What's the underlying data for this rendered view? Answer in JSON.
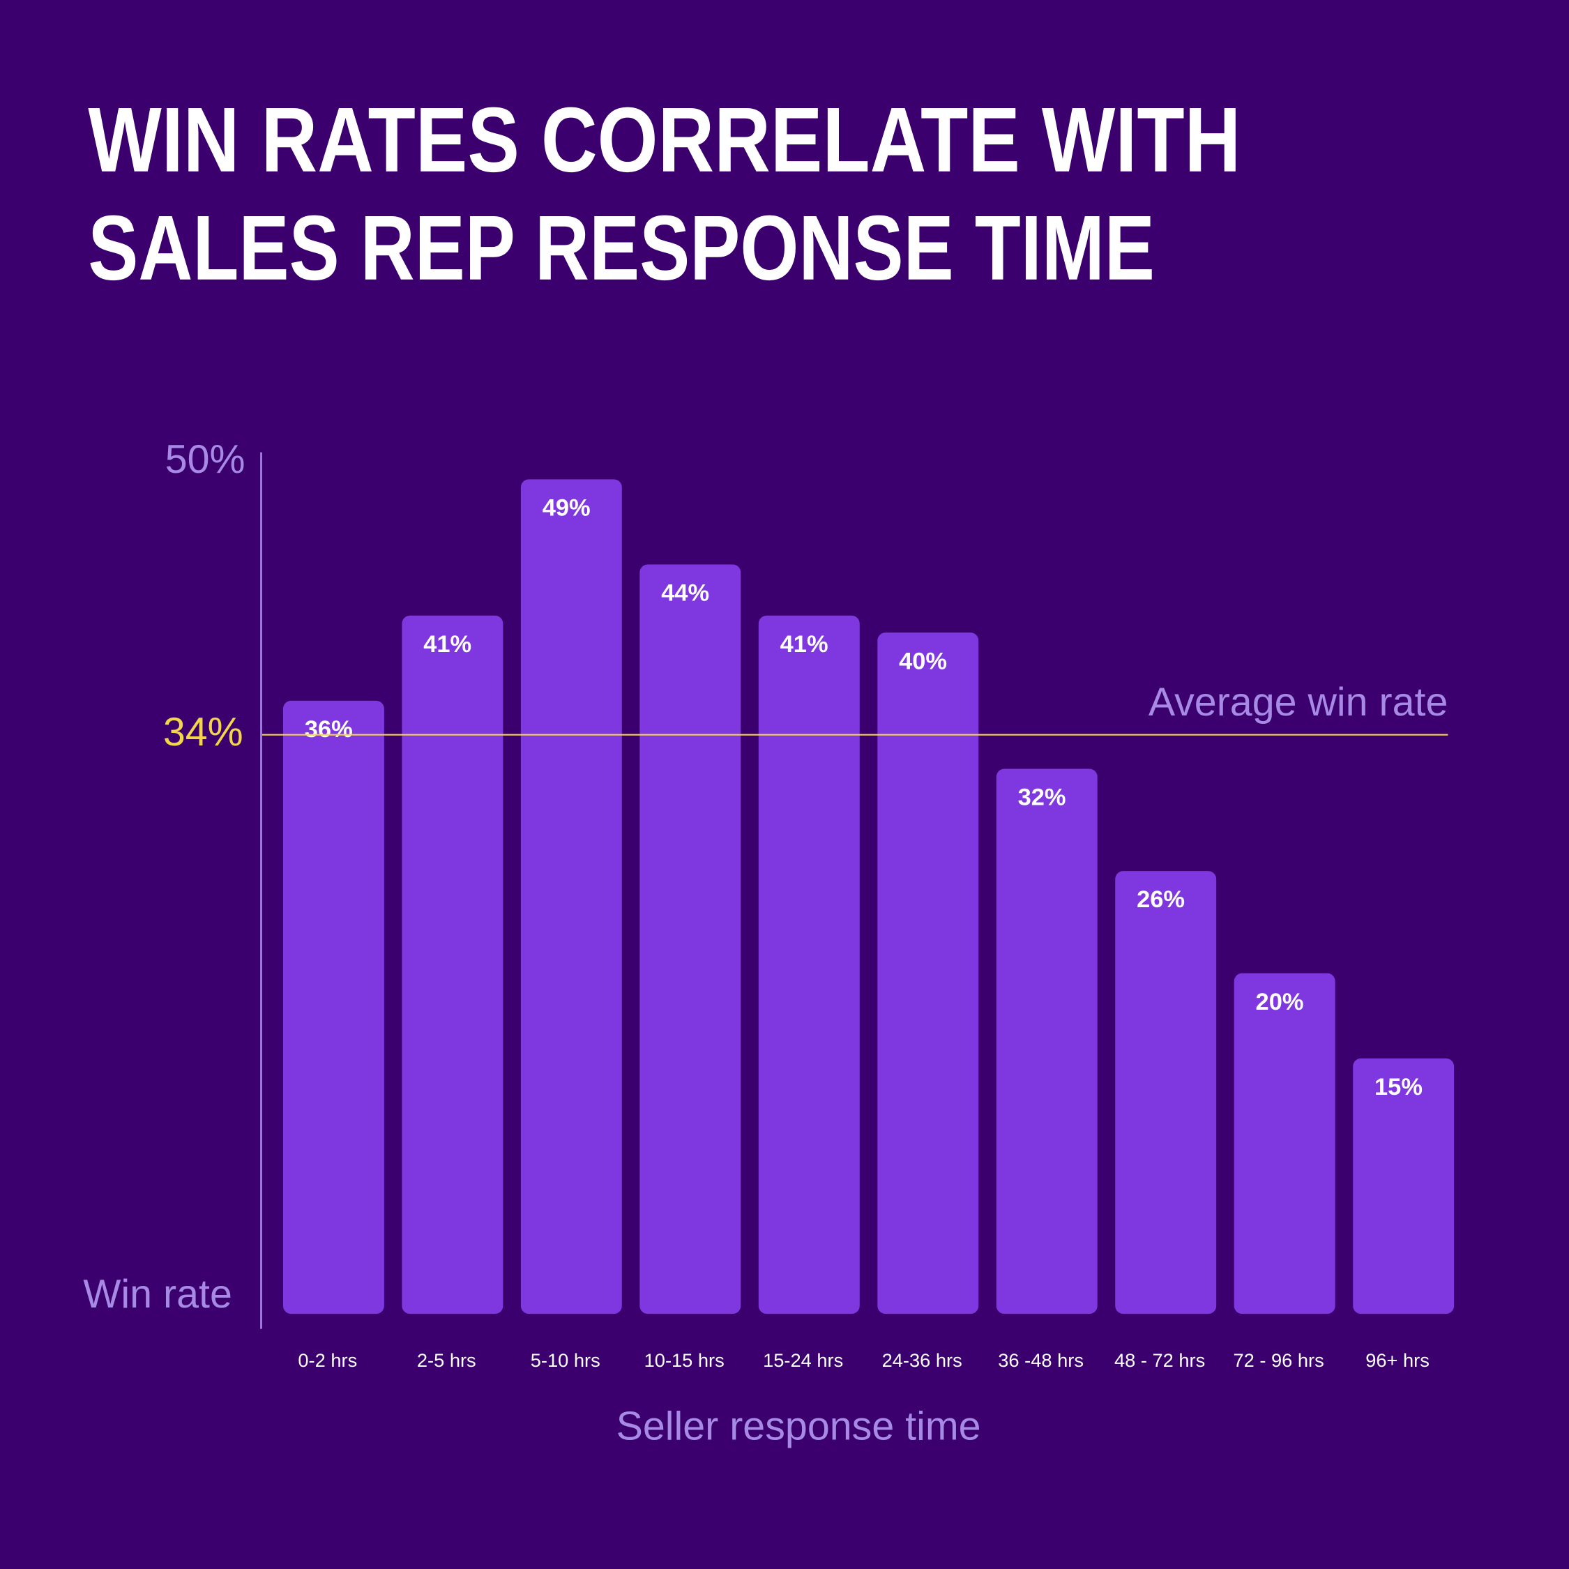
{
  "chart_data": {
    "type": "bar",
    "title": [
      "WIN RATES CORRELATE WITH",
      "SALES REP RESPONSE TIME"
    ],
    "y_label": "Win rate",
    "x_label": "Seller response time",
    "categories": [
      "0-2 hrs",
      "2-5 hrs",
      "5-10 hrs",
      "10-15 hrs",
      "15-24 hrs",
      "24-36 hrs",
      "36 -48 hrs",
      "48 - 72 hrs",
      "72 - 96 hrs",
      "96+ hrs"
    ],
    "values": [
      36,
      41,
      49,
      44,
      41,
      40,
      32,
      26,
      20,
      15
    ],
    "value_labels": [
      "36%",
      "41%",
      "49%",
      "44%",
      "41%",
      "40%",
      "32%",
      "26%",
      "20%",
      "15%"
    ],
    "color": "#7f38e0",
    "ylim": [
      0,
      50
    ],
    "yticks": [
      {
        "value": 50,
        "label": "50%"
      }
    ],
    "reference_line": {
      "value": 34,
      "label": "34%",
      "text": "Average win rate",
      "color": "#f2d54a"
    }
  }
}
